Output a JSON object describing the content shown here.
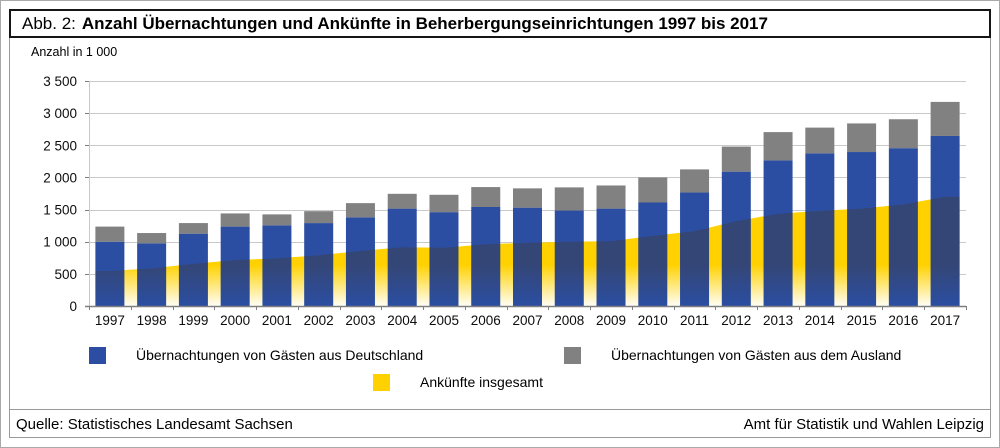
{
  "title": {
    "prefix": "Abb. 2:",
    "main": "Anzahl Übernachtungen und Ankünfte in Beherbergungseinrichtungen 1997 bis 2017"
  },
  "axis_unit_label": "Anzahl in 1 000",
  "source": {
    "left": "Quelle: Statistisches Landesamt Sachsen",
    "right": "Amt für Statistik und Wahlen Leipzig"
  },
  "colors": {
    "domestic_blue": "#2B4EA2",
    "foreign_gray": "#818181",
    "arrivals_yellow": "#FFD100",
    "area_fade_bottom": "#FFFEF6",
    "overlap_tint": "rgba(70,55,35,0.35)",
    "grid": "#C9C9C9",
    "axis": "#7F7F7F",
    "tick_label": "#0D0D0D"
  },
  "chart_data": {
    "type": "bar",
    "subtype": "stacked-bars-with-area-overlay",
    "title": "Anzahl Übernachtungen und Ankünfte in Beherbergungseinrichtungen 1997 bis 2017",
    "xlabel": "",
    "ylabel": "Anzahl in 1 000",
    "ylim": [
      0,
      3500
    ],
    "ytick_step": 500,
    "ytick_labels": [
      "0",
      "500",
      "1 000",
      "1 500",
      "2 000",
      "2 500",
      "3 000",
      "3 500"
    ],
    "grid": true,
    "legend_position": "bottom",
    "categories": [
      "1997",
      "1998",
      "1999",
      "2000",
      "2001",
      "2002",
      "2003",
      "2004",
      "2005",
      "2006",
      "2007",
      "2008",
      "2009",
      "2010",
      "2011",
      "2012",
      "2013",
      "2014",
      "2015",
      "2016",
      "2017"
    ],
    "series": [
      {
        "name": "Übernachtungen von Gästen aus Deutschland",
        "render": "bar-stack-bottom",
        "color": "#2B4EA2",
        "values": [
          1000,
          975,
          1125,
          1235,
          1255,
          1290,
          1380,
          1515,
          1460,
          1540,
          1530,
          1485,
          1515,
          1610,
          1765,
          2090,
          2265,
          2375,
          2395,
          2455,
          2645
        ]
      },
      {
        "name": "Übernachtungen von Gästen aus dem Ausland",
        "render": "bar-stack-top",
        "color": "#818181",
        "values": [
          235,
          160,
          165,
          205,
          170,
          185,
          220,
          230,
          270,
          310,
          300,
          360,
          360,
          390,
          360,
          390,
          440,
          400,
          445,
          450,
          530
        ]
      },
      {
        "name": "Ankünfte insgesamt",
        "render": "area",
        "color": "#FFD100",
        "values": [
          545,
          585,
          655,
          715,
          740,
          790,
          855,
          915,
          905,
          960,
          985,
          1000,
          1010,
          1090,
          1165,
          1320,
          1435,
          1480,
          1515,
          1580,
          1700
        ]
      }
    ]
  }
}
